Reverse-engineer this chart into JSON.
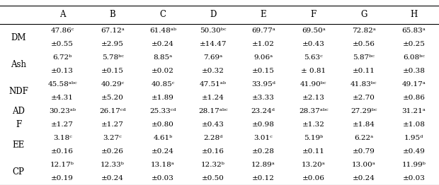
{
  "columns": [
    "A",
    "B",
    "C",
    "D",
    "E",
    "F",
    "G",
    "H"
  ],
  "row_labels": [
    "DM",
    "Ash",
    "NDF",
    "AD",
    "F",
    "EE",
    "CP"
  ],
  "cell_data": [
    [
      "47.86ᶜ",
      "67.12ᵃ",
      "61.48ᵃᵇ",
      "50.30ᵇᶜ",
      "69.77ᵃ",
      "69.50ᵃ",
      "72.82ᵃ",
      "65.83ᵃ"
    ],
    [
      "±0.55",
      "±2.95",
      "±0.24",
      "±14.47",
      "±1.02",
      "±0.43",
      "±0.56",
      "±0.25"
    ],
    [
      "6.72ᵇ",
      "5.78ᵇᶜ",
      "8.85ᵃ",
      "7.69ᵃ",
      "9.06ᵃ",
      "5.63ᶜ",
      "5.87ᵇᶜ",
      "6.08ᵇᶜ"
    ],
    [
      "±0.13",
      "±0.15",
      "±0.02",
      "±0.32",
      "±0.15",
      "± 0.81",
      "±0.11",
      "±0.38"
    ],
    [
      "45.58ᵃᵇᶜ",
      "40.29ᶜ",
      "40.85ᶜ",
      "47.51ᵃᵇ",
      "33.95ᵈ",
      "41.90ᵇᶜ",
      "41.83ᵇᶜ",
      "49.17ᵃ"
    ],
    [
      "±4.31",
      "±5.20",
      "±1.89",
      "±1.24",
      "±3.33",
      "±2.13",
      "±2.70",
      "±0.86"
    ],
    [
      "30.23ᵃᵇ",
      "26.17ᶜᵈ",
      "25.33ᶜᵈ",
      "28.17ᵃᵇᶜ",
      "23.24ᵈ",
      "28.37ᵃᵇᶜ",
      "27.29ᵇᶜ",
      "31.21ᵃ"
    ],
    [
      "±1.27",
      "±1.27",
      "±0.80",
      "±0.43",
      "±0.98",
      "±1.32",
      "±1.84",
      "±1.08"
    ],
    [
      "3.18ᶜ",
      "3.27ᶜ",
      "4.61ᵇ",
      "2.28ᵈ",
      "3.01ᶜ",
      "5.19ᵇ",
      "6.22ᵃ",
      "1.95ᵈ"
    ],
    [
      "±0.16",
      "±0.26",
      "±0.24",
      "±0.16",
      "±0.28",
      "±0.11",
      "±0.79",
      "±0.49"
    ],
    [
      "12.17ᵇ",
      "12.33ᵇ",
      "13.18ᵃ",
      "12.32ᵇ",
      "12.89ᵃ",
      "13.20ᵃ",
      "13.00ᵃ",
      "11.99ᵇ"
    ],
    [
      "±0.19",
      "±0.24",
      "±0.03",
      "±0.50",
      "±0.12",
      "±0.06",
      "±0.24",
      "±0.03"
    ]
  ],
  "row_label_assignments": [
    0,
    0,
    2,
    2,
    4,
    4,
    6,
    7,
    8,
    8,
    10,
    10
  ],
  "row_labels_list": [
    "DM",
    "",
    "Ash",
    "",
    "NDF",
    "",
    "AD",
    "F",
    "EE",
    "",
    "CP",
    ""
  ],
  "background_color": "#ffffff",
  "text_color": "#000000",
  "font_size": 7.5,
  "label_font_size": 8.5,
  "header_font_size": 8.5
}
